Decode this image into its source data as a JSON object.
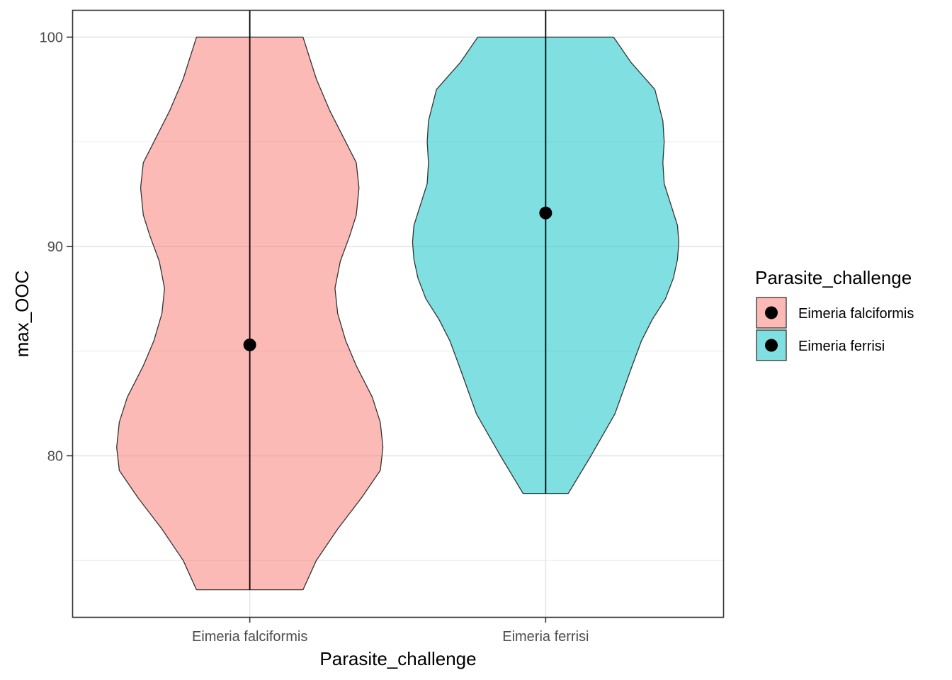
{
  "chart_data": {
    "type": "violin",
    "xlabel": "Parasite_challenge",
    "ylabel": "max_OOC",
    "categories": [
      "Eimeria falciformis",
      "Eimeria ferrisi"
    ],
    "ylim": [
      72.3,
      101.3
    ],
    "yticks": [
      80,
      90,
      100
    ],
    "grid": true,
    "legend": {
      "title": "Parasite_challenge",
      "placement": "right",
      "entries": [
        "Eimeria falciformis",
        "Eimeria ferrisi"
      ]
    },
    "series": [
      {
        "name": "Eimeria falciformis",
        "fill": "#F8766D",
        "min": 73.6,
        "max": 100,
        "median": 85.3,
        "density": [
          [
            73.6,
            0.4
          ],
          [
            75.0,
            0.5
          ],
          [
            76.5,
            0.66
          ],
          [
            78.0,
            0.84
          ],
          [
            79.3,
            0.98
          ],
          [
            80.4,
            1.0
          ],
          [
            81.6,
            0.98
          ],
          [
            82.8,
            0.92
          ],
          [
            84.3,
            0.8
          ],
          [
            85.5,
            0.72
          ],
          [
            86.8,
            0.66
          ],
          [
            88.0,
            0.64
          ],
          [
            89.3,
            0.68
          ],
          [
            90.5,
            0.75
          ],
          [
            91.5,
            0.8
          ],
          [
            92.8,
            0.82
          ],
          [
            94.0,
            0.8
          ],
          [
            95.0,
            0.72
          ],
          [
            96.5,
            0.6
          ],
          [
            98.0,
            0.5
          ],
          [
            100.0,
            0.4
          ]
        ]
      },
      {
        "name": "Eimeria ferrisi",
        "fill": "#00BFC4",
        "min": 78.2,
        "max": 100,
        "median": 91.6,
        "density": [
          [
            78.2,
            0.17
          ],
          [
            80.0,
            0.34
          ],
          [
            82.0,
            0.52
          ],
          [
            84.3,
            0.65
          ],
          [
            85.5,
            0.72
          ],
          [
            86.5,
            0.8
          ],
          [
            87.5,
            0.9
          ],
          [
            88.5,
            0.96
          ],
          [
            89.4,
            0.99
          ],
          [
            90.2,
            1.0
          ],
          [
            91.0,
            0.99
          ],
          [
            92.0,
            0.94
          ],
          [
            93.0,
            0.89
          ],
          [
            94.0,
            0.88
          ],
          [
            95.0,
            0.89
          ],
          [
            96.0,
            0.88
          ],
          [
            97.5,
            0.82
          ],
          [
            98.8,
            0.64
          ],
          [
            100.0,
            0.51
          ]
        ]
      }
    ]
  }
}
